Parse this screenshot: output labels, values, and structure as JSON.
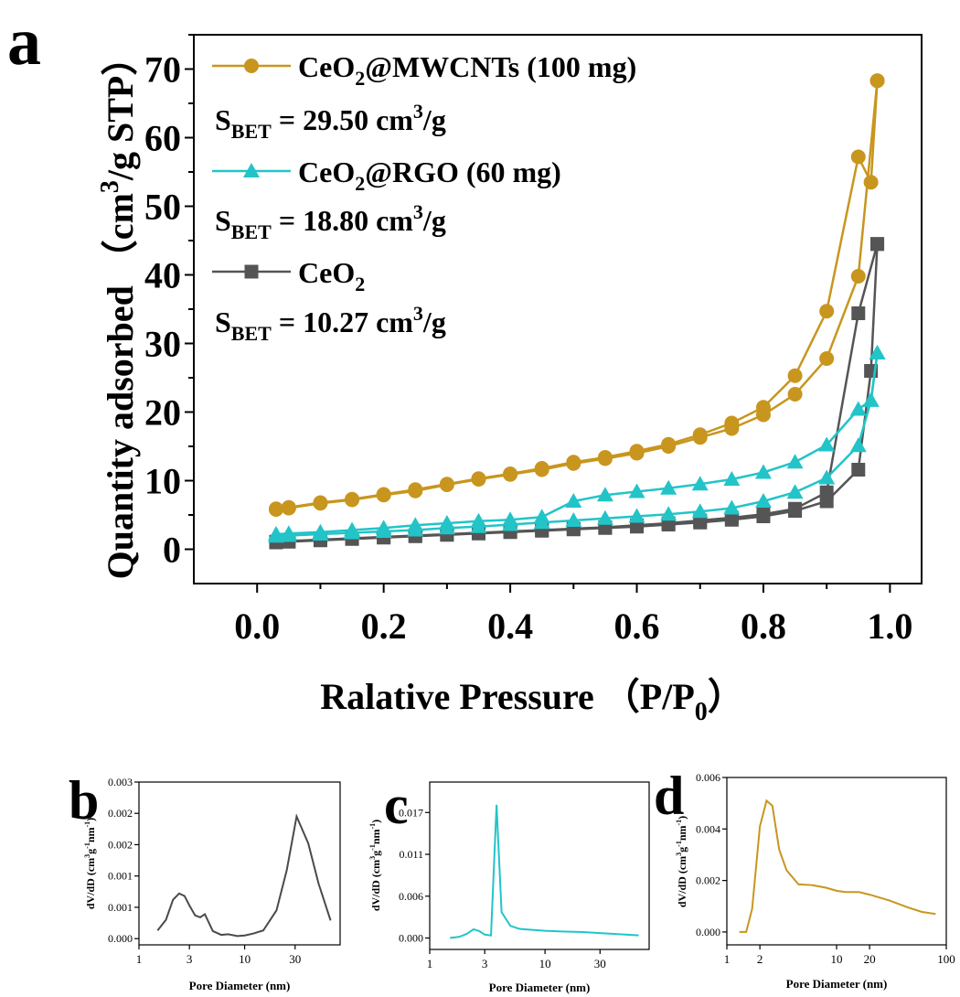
{
  "chart_data": [
    {
      "panel": "a",
      "type": "line",
      "xlabel": "Ralative Pressure （P/P",
      "xlabel_sub": "0",
      "xlabel_end": "）",
      "ylabel": "Quantity adsorbed （cm",
      "ylabel_sup": "3",
      "ylabel_end": "/g STP）",
      "xlim": [
        -0.1,
        1.05
      ],
      "ylim": [
        -5,
        75
      ],
      "xticks": [
        "0.0",
        "0.2",
        "0.4",
        "0.6",
        "0.8",
        "1.0"
      ],
      "xtick_values": [
        0,
        0.2,
        0.4,
        0.6,
        0.8,
        1.0
      ],
      "yticks": [
        "0",
        "10",
        "20",
        "30",
        "40",
        "50",
        "60",
        "70"
      ],
      "ytick_values": [
        0,
        10,
        20,
        30,
        40,
        50,
        60,
        70
      ],
      "legend": [
        {
          "pre": "CeO",
          "sub": "2",
          "post": "@MWCNTs (100 mg)",
          "series": 0
        },
        {
          "pre": "CeO",
          "sub": "2",
          "post": "@RGO (60 mg)",
          "series": 1
        },
        {
          "pre": "CeO",
          "sub": "2",
          "post": "",
          "series": 2
        }
      ],
      "annotations": [
        {
          "pre": "S",
          "sub": "BET",
          "mid": " = 29.50 cm",
          "sup": "3",
          "post": "/g"
        },
        {
          "pre": "S",
          "sub": "BET",
          "mid": " = 18.80 cm",
          "sup": "3",
          "post": "/g"
        },
        {
          "pre": "S",
          "sub": "BET",
          "mid": " = 10.27 cm",
          "sup": "3",
          "post": "/g"
        }
      ],
      "series": [
        {
          "name": "CeO2@MWCNTs (100 mg)",
          "color": "#c8961e",
          "marker": "circle",
          "adsorption": {
            "x": [
              0.03,
              0.05,
              0.1,
              0.15,
              0.2,
              0.25,
              0.3,
              0.35,
              0.4,
              0.45,
              0.5,
              0.55,
              0.6,
              0.65,
              0.7,
              0.75,
              0.8,
              0.85,
              0.9,
              0.95,
              0.98
            ],
            "y": [
              5.8,
              6.0,
              6.7,
              7.2,
              7.9,
              8.5,
              9.4,
              10.2,
              10.9,
              11.6,
              12.5,
              13.2,
              14.0,
              15.0,
              16.3,
              17.6,
              19.6,
              22.6,
              27.8,
              39.8,
              68.3
            ]
          },
          "desorption": {
            "x": [
              0.98,
              0.97,
              0.95,
              0.9,
              0.85,
              0.8,
              0.75,
              0.7,
              0.65,
              0.6,
              0.55,
              0.5,
              0.45,
              0.4,
              0.35,
              0.3,
              0.25,
              0.2,
              0.15,
              0.1,
              0.05,
              0.03
            ],
            "y": [
              68.3,
              53.5,
              57.2,
              34.7,
              25.3,
              20.7,
              18.4,
              16.7,
              15.3,
              14.3,
              13.4,
              12.7,
              11.8,
              11.0,
              10.3,
              9.5,
              8.7,
              8.0,
              7.3,
              6.8,
              6.1,
              5.9
            ]
          }
        },
        {
          "name": "CeO2@RGO (60 mg)",
          "color": "#22c4c8",
          "marker": "triangle",
          "adsorption": {
            "x": [
              0.03,
              0.05,
              0.1,
              0.15,
              0.2,
              0.25,
              0.3,
              0.35,
              0.4,
              0.45,
              0.5,
              0.55,
              0.6,
              0.65,
              0.7,
              0.75,
              0.8,
              0.85,
              0.9,
              0.95,
              0.97,
              0.98
            ],
            "y": [
              1.9,
              2.0,
              2.2,
              2.4,
              2.6,
              2.8,
              3.1,
              3.3,
              3.6,
              3.9,
              4.2,
              4.5,
              4.8,
              5.1,
              5.5,
              6.0,
              7.0,
              8.3,
              10.4,
              15.1,
              21.7,
              28.6
            ]
          },
          "desorption": {
            "x": [
              0.98,
              0.97,
              0.95,
              0.9,
              0.85,
              0.8,
              0.75,
              0.7,
              0.65,
              0.6,
              0.55,
              0.5,
              0.45,
              0.4,
              0.35,
              0.3,
              0.25,
              0.2,
              0.15,
              0.1,
              0.05,
              0.03
            ],
            "y": [
              28.6,
              21.7,
              20.4,
              15.2,
              12.7,
              11.2,
              10.2,
              9.5,
              8.9,
              8.4,
              7.9,
              7.0,
              4.7,
              4.3,
              4.1,
              3.8,
              3.5,
              3.1,
              2.8,
              2.5,
              2.3,
              2.2
            ]
          }
        },
        {
          "name": "CeO2",
          "color": "#555555",
          "marker": "square",
          "adsorption": {
            "x": [
              0.03,
              0.05,
              0.1,
              0.15,
              0.2,
              0.25,
              0.3,
              0.35,
              0.4,
              0.45,
              0.5,
              0.55,
              0.6,
              0.65,
              0.7,
              0.75,
              0.8,
              0.85,
              0.9,
              0.95,
              0.97,
              0.98
            ],
            "y": [
              1.0,
              1.1,
              1.3,
              1.5,
              1.7,
              1.9,
              2.1,
              2.3,
              2.5,
              2.7,
              2.9,
              3.1,
              3.3,
              3.6,
              3.9,
              4.3,
              4.8,
              5.6,
              7.0,
              11.6,
              26.0,
              44.5
            ]
          },
          "desorption": {
            "x": [
              0.98,
              0.95,
              0.9,
              0.85,
              0.8,
              0.75,
              0.7,
              0.65,
              0.6,
              0.55,
              0.5,
              0.45,
              0.4,
              0.35,
              0.3,
              0.25,
              0.2,
              0.15,
              0.1,
              0.05,
              0.03
            ],
            "y": [
              44.5,
              34.4,
              8.3,
              5.9,
              5.1,
              4.6,
              4.2,
              3.8,
              3.5,
              3.2,
              3.0,
              2.8,
              2.6,
              2.4,
              2.2,
              2.0,
              1.8,
              1.6,
              1.4,
              1.2,
              1.1
            ]
          }
        }
      ]
    },
    {
      "panel": "b",
      "type": "line",
      "scale": "log",
      "xlabel": "Pore Diameter (nm)",
      "ylabel": "dV/dD (cm",
      "ylabel_sup1": "3",
      "ylabel_mid": "g",
      "ylabel_sup2": "-1",
      "ylabel_mid2": "nm",
      "ylabel_sup3": "-1",
      "ylabel_end": ")",
      "xlim": [
        1,
        80
      ],
      "ylim": [
        -0.0001,
        0.0025
      ],
      "xticks": [
        "1",
        "3",
        "10",
        "30"
      ],
      "xtick_values": [
        1,
        3,
        10,
        30
      ],
      "yticks": [
        "0.000",
        "0.001",
        "0.001",
        "0.002",
        "0.002",
        "0.003"
      ],
      "ytick_values": [
        0,
        0.0005,
        0.001,
        0.0015,
        0.002,
        0.0025
      ],
      "series": [
        {
          "color": "#4a4a4a",
          "x": [
            1.5,
            1.8,
            2.1,
            2.4,
            2.7,
            3.0,
            3.4,
            3.8,
            4.2,
            5.0,
            6.0,
            7.0,
            8.5,
            10.0,
            12.0,
            15.0,
            20.0,
            25.0,
            31.0,
            40.0,
            50.0,
            65.0
          ],
          "y": [
            0.00013,
            0.0003,
            0.00062,
            0.00072,
            0.00068,
            0.00053,
            0.00037,
            0.00034,
            0.00039,
            0.00012,
            6e-05,
            7e-05,
            4e-05,
            5e-05,
            8e-05,
            0.00013,
            0.00045,
            0.00109,
            0.00195,
            0.00152,
            0.00088,
            0.00029
          ]
        }
      ]
    },
    {
      "panel": "c",
      "type": "line",
      "scale": "log",
      "xlabel": "Pore Diameter (nm)",
      "ylabel": "dV/dD (cm",
      "ylabel_sup1": "3",
      "ylabel_mid": "g",
      "ylabel_sup2": "-1",
      "ylabel_mid2": "nm",
      "ylabel_sup3": "-1",
      "ylabel_end": ")",
      "xlim": [
        1,
        80
      ],
      "ylim": [
        -0.0015,
        0.0205
      ],
      "xticks": [
        "1",
        "3",
        "10",
        "30"
      ],
      "xtick_values": [
        1,
        3,
        10,
        30
      ],
      "yticks": [
        "0.000",
        "0.006",
        "0.011",
        "0.017"
      ],
      "ytick_values": [
        0,
        0.0055,
        0.011,
        0.0165
      ],
      "series": [
        {
          "color": "#22c4c8",
          "x": [
            1.5,
            1.8,
            2.1,
            2.4,
            2.7,
            3.0,
            3.4,
            3.8,
            4.2,
            5.0,
            6.0,
            8.0,
            10.0,
            15.0,
            20.0,
            30.0,
            50.0,
            65.0
          ],
          "y": [
            2e-05,
            0.00015,
            0.00055,
            0.00115,
            0.0009,
            0.00045,
            0.00033,
            0.0175,
            0.0034,
            0.0016,
            0.0012,
            0.00105,
            0.00095,
            0.00085,
            0.0008,
            0.00065,
            0.00045,
            0.00035
          ]
        }
      ]
    },
    {
      "panel": "d",
      "type": "line",
      "scale": "log",
      "xlabel": "Pore Diameter (nm)",
      "ylabel": "dV/dD (cm",
      "ylabel_sup1": "3",
      "ylabel_mid": "g",
      "ylabel_sup2": "-1",
      "ylabel_mid2": "nm",
      "ylabel_sup3": "-1",
      "ylabel_end": ")",
      "xlim": [
        1,
        100
      ],
      "ylim": [
        -0.0005,
        0.006
      ],
      "xticks": [
        "1",
        "2",
        "10",
        "20",
        "100"
      ],
      "xtick_values": [
        1,
        2,
        10,
        20,
        100
      ],
      "yticks": [
        "0.000",
        "0.002",
        "0.004",
        "0.006"
      ],
      "ytick_values": [
        0,
        0.002,
        0.004,
        0.006
      ],
      "series": [
        {
          "color": "#c8961e",
          "x": [
            1.3,
            1.5,
            1.7,
            2.0,
            2.3,
            2.6,
            3.0,
            3.5,
            4.5,
            6.0,
            8.0,
            10.0,
            12.0,
            16.0,
            20.0,
            30.0,
            45.0,
            60.0,
            80.0
          ],
          "y": [
            0.0,
            0.0,
            0.0009,
            0.0041,
            0.0051,
            0.0049,
            0.0032,
            0.0024,
            0.00185,
            0.00182,
            0.00172,
            0.0016,
            0.00155,
            0.00155,
            0.00145,
            0.00123,
            0.00095,
            0.00078,
            0.0007
          ]
        }
      ]
    }
  ],
  "panel_labels": [
    "a",
    "b",
    "c",
    "d"
  ]
}
